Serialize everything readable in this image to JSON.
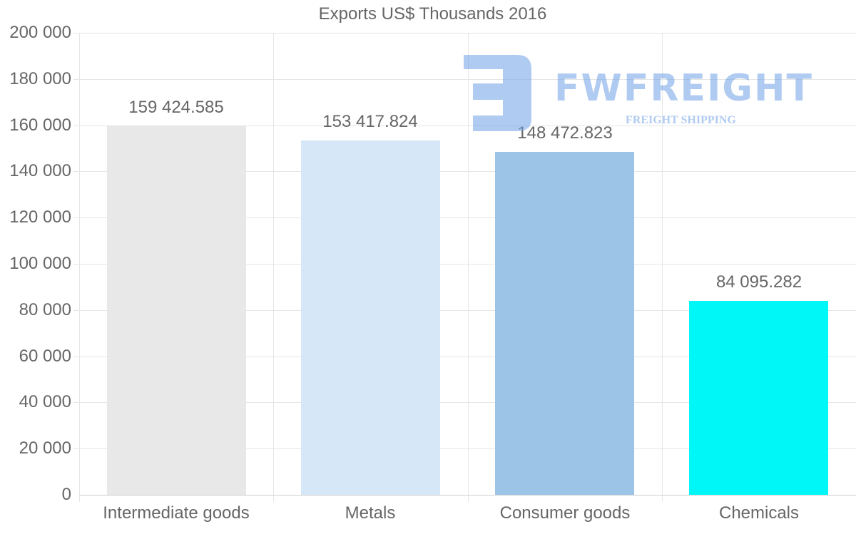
{
  "chart_data": {
    "type": "bar",
    "title": "Exports US$ Thousands 2016",
    "categories": [
      "Intermediate goods",
      "Metals",
      "Consumer goods",
      "Chemicals"
    ],
    "values": [
      159424.585,
      153417.824,
      148472.823,
      84095.282
    ],
    "value_labels": [
      "159 424.585",
      "153 417.824",
      "148 472.823",
      "84 095.282"
    ],
    "colors": [
      "#e8e8e8",
      "#d6e8f8",
      "#9cc4e6",
      "#00f7f7"
    ],
    "xlabel": "",
    "ylabel": "",
    "ylim": [
      0,
      200000
    ],
    "yticks": [
      "200 000",
      "180 000",
      "160 000",
      "140 000",
      "120 000",
      "100 000",
      "80 000",
      "60 000",
      "40 000",
      "20 000",
      "0"
    ],
    "grid": true,
    "legend": "none"
  },
  "watermark": {
    "brand": "FWFREIGHT",
    "tagline": "FREIGHT SHIPPING"
  }
}
